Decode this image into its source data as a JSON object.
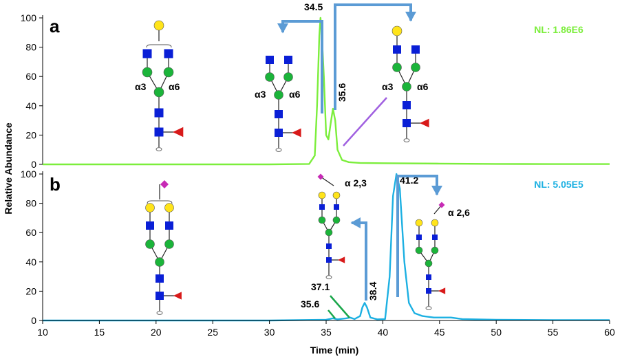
{
  "colors": {
    "panel_a": "#7CEE3C",
    "panel_b": "#1CB0E2",
    "arrow": "#5B9BD5",
    "purple_line": "#A060E0",
    "green_line": "#19A64A",
    "galactose": "#FFE41A",
    "glcnac": "#0A1FD6",
    "mannose": "#1BB43A",
    "fucose": "#D81A1A",
    "sialic_acid": "#C72AB5"
  },
  "chart_data": [
    {
      "type": "line",
      "panel": "a",
      "panel_label": "a",
      "nl_label": "NL: 1.86E6",
      "color": "#7CEE3C",
      "ylim": [
        0,
        100
      ],
      "yticks": [
        0,
        20,
        40,
        60,
        80,
        100
      ],
      "series": [
        {
          "x": [
            10,
            20,
            30,
            33.5,
            34.0,
            34.2,
            34.4,
            34.5,
            34.6,
            34.8,
            35.0,
            35.2,
            35.4,
            35.6,
            35.8,
            36.0,
            36.4,
            37,
            38,
            40,
            45,
            50,
            55,
            60
          ],
          "y": [
            0,
            0,
            0,
            0.3,
            6,
            40,
            88,
            100,
            92,
            60,
            20,
            17,
            28,
            38,
            30,
            10,
            3,
            1.5,
            1,
            0.8,
            0.5,
            0.3,
            0.2,
            0.2
          ]
        }
      ],
      "peak_labels": [
        {
          "x": 34.5,
          "y": 100,
          "text": "34.5"
        },
        {
          "x": 35.6,
          "y": 38,
          "text": "35.6"
        }
      ],
      "linkage_labels": [
        "α3",
        "α6",
        "α3",
        "α6",
        "α3",
        "α6"
      ]
    },
    {
      "type": "line",
      "panel": "b",
      "panel_label": "b",
      "nl_label": "NL: 5.05E5",
      "color": "#1CB0E2",
      "ylim": [
        0,
        100
      ],
      "yticks": [
        0,
        20,
        40,
        60,
        80,
        100
      ],
      "series": [
        {
          "x": [
            10,
            20,
            30,
            35.0,
            35.6,
            36.0,
            36.8,
            37.1,
            37.5,
            38.0,
            38.2,
            38.4,
            38.6,
            38.9,
            39.5,
            40.2,
            40.6,
            40.9,
            41.2,
            41.5,
            41.9,
            42.3,
            42.8,
            43.5,
            44.5,
            46,
            47,
            50,
            55,
            60
          ],
          "y": [
            0,
            0,
            0,
            0.5,
            1.5,
            0.8,
            1.5,
            2,
            1,
            3,
            9,
            12,
            9,
            2,
            0.8,
            1,
            30,
            85,
            100,
            90,
            40,
            12,
            5,
            3,
            2,
            2,
            1,
            0.5,
            0.3,
            0.3
          ]
        }
      ],
      "peak_labels": [
        {
          "x": 35.6,
          "y": 1.5,
          "text": "35.6"
        },
        {
          "x": 37.1,
          "y": 2,
          "text": "37.1"
        },
        {
          "x": 38.4,
          "y": 12,
          "text": "38.4"
        },
        {
          "x": 41.2,
          "y": 100,
          "text": "41.2"
        }
      ],
      "linkage_labels": [
        "α 2,3",
        "α 2,6"
      ]
    }
  ],
  "x_axis": {
    "label": "Time (min)",
    "xlim": [
      10,
      60
    ],
    "ticks": [
      10,
      15,
      20,
      25,
      30,
      35,
      40,
      45,
      50,
      55,
      60
    ]
  },
  "y_axis": {
    "label": "Relative Abundance"
  }
}
